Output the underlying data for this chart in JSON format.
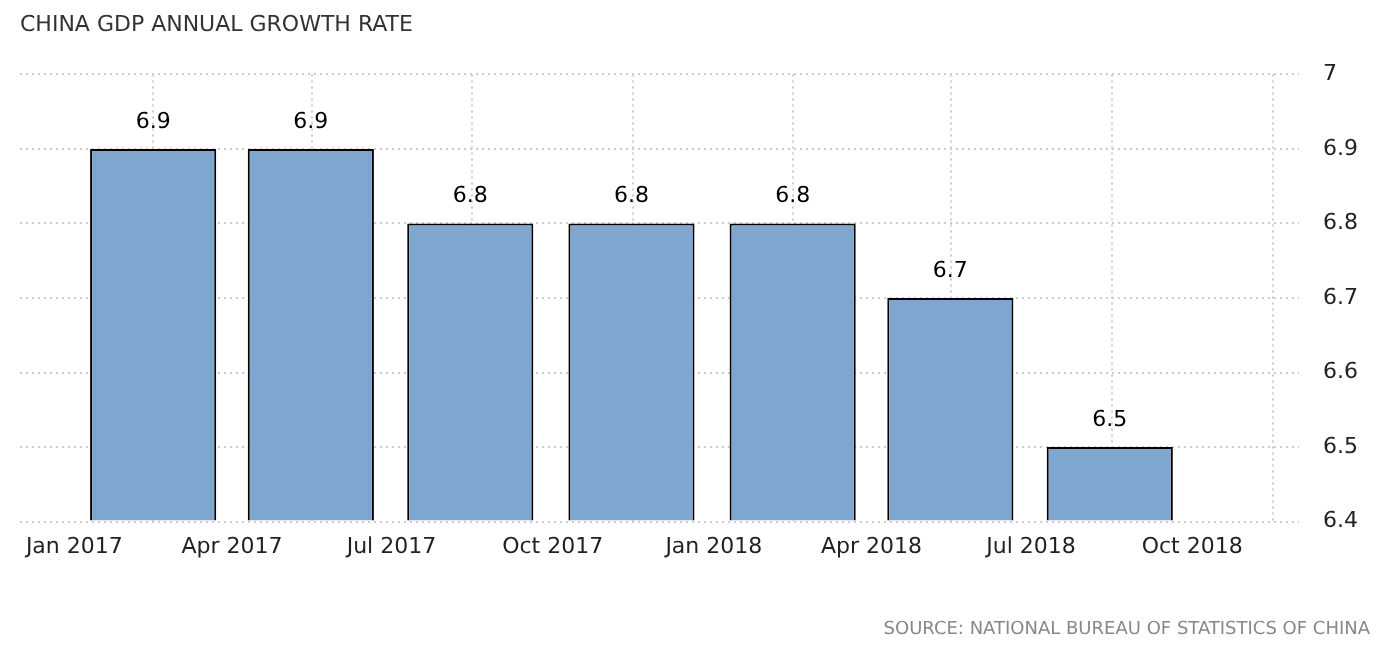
{
  "chart_data": {
    "type": "bar",
    "title": "CHINA GDP ANNUAL GROWTH RATE",
    "x": [
      "2017-02-15",
      "2017-05-16",
      "2017-08-15",
      "2017-11-15",
      "2018-02-15",
      "2018-05-16",
      "2018-08-15"
    ],
    "values": [
      6.9,
      6.9,
      6.8,
      6.8,
      6.8,
      6.7,
      6.5
    ],
    "color": "#7fa6cf",
    "xlim": [
      "2016-12-01",
      "2018-12-01"
    ],
    "xticks": [
      {
        "value": "2017-01",
        "label": "Jan 2017"
      },
      {
        "value": "2017-04",
        "label": "Apr 2017"
      },
      {
        "value": "2017-07",
        "label": "Jul 2017"
      },
      {
        "value": "2017-10",
        "label": "Oct 2017"
      },
      {
        "value": "2018-01",
        "label": "Jan 2018"
      },
      {
        "value": "2018-04",
        "label": "Apr 2018"
      },
      {
        "value": "2018-07",
        "label": "Jul 2018"
      },
      {
        "value": "2018-10",
        "label": "Oct 2018"
      }
    ],
    "ylim": [
      6.4,
      7
    ],
    "yticks": [
      6.4,
      6.5,
      6.6,
      6.7,
      6.8,
      6.9,
      7
    ],
    "grid": true,
    "data_labels": true,
    "annotations": [
      "SOURCE: NATIONAL BUREAU OF STATISTICS OF CHINA"
    ]
  }
}
